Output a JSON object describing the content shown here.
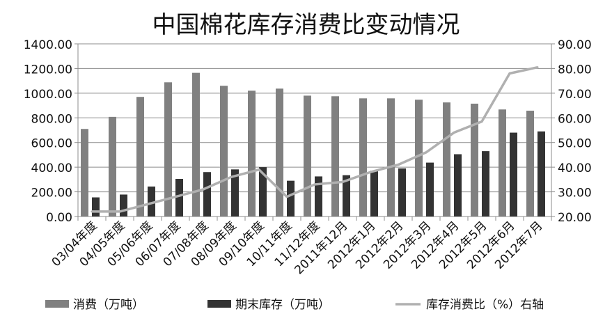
{
  "chart_data": {
    "type": "bar",
    "title": "中国棉花库存消费比变动情况",
    "categories": [
      "03/04年度",
      "04/05年度",
      "05/06年度",
      "06/07年度",
      "07/08年度",
      "08/09年度",
      "09/10年度",
      "10/11年度",
      "11/12年度",
      "2011年12月",
      "2012年1月",
      "2012年2月",
      "2012年3月",
      "2012年4月",
      "2012年5月",
      "2012年6月",
      "2012年7月"
    ],
    "series": [
      {
        "name": "消费（万吨）",
        "axis": "left",
        "color": "#808080",
        "values": [
          710,
          808,
          970,
          1088,
          1165,
          1060,
          1020,
          1037,
          980,
          975,
          958,
          958,
          947,
          925,
          915,
          868,
          858
        ]
      },
      {
        "name": "期末库存（万吨）",
        "axis": "left",
        "color": "#333333",
        "values": [
          155,
          178,
          243,
          305,
          360,
          382,
          400,
          290,
          325,
          335,
          372,
          390,
          437,
          505,
          530,
          680,
          690
        ]
      },
      {
        "name": "库存消费比（%）右轴",
        "axis": "right",
        "type": "line",
        "color": "#b0b0b0",
        "values": [
          22,
          22,
          25,
          28,
          31,
          36,
          39,
          28,
          33,
          34,
          38,
          41,
          46,
          54,
          58.5,
          78,
          80.5
        ]
      }
    ],
    "y_left": {
      "min": 0,
      "max": 1400,
      "step": 200,
      "tick_labels": [
        "0.00",
        "200.00",
        "400.00",
        "600.00",
        "800.00",
        "1000.00",
        "1200.00",
        "1400.00"
      ]
    },
    "y_right": {
      "min": 20,
      "max": 90,
      "step": 10,
      "tick_labels": [
        "20.00",
        "30.00",
        "40.00",
        "50.00",
        "60.00",
        "70.00",
        "80.00",
        "90.00"
      ]
    },
    "grid": "horizontal",
    "legend_position": "bottom"
  }
}
